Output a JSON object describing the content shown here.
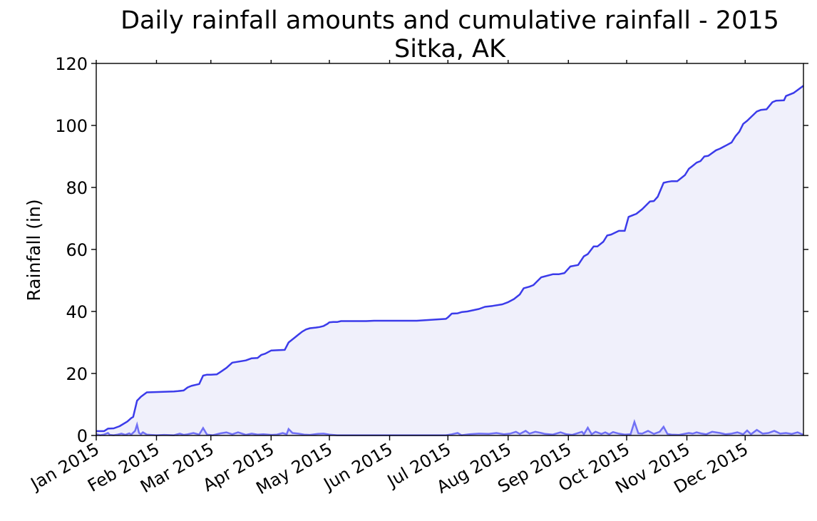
{
  "chart_data": {
    "type": "area",
    "title": "Daily rainfall amounts and cumulative rainfall - 2015",
    "subtitle": "Sitka, AK",
    "xlabel": "",
    "ylabel": "Rainfall (in)",
    "xlim": [
      "2015-01-01",
      "2015-12-31"
    ],
    "ylim": [
      0,
      120
    ],
    "x_ticks": [
      "2015-01-01",
      "2015-02-01",
      "2015-03-01",
      "2015-04-01",
      "2015-05-01",
      "2015-06-01",
      "2015-07-01",
      "2015-08-01",
      "2015-09-01",
      "2015-10-01",
      "2015-11-01",
      "2015-12-01"
    ],
    "x_tick_labels": [
      "Jan 2015",
      "Feb 2015",
      "Mar 2015",
      "Apr 2015",
      "May 2015",
      "Jun 2015",
      "Jul 2015",
      "Aug 2015",
      "Sep 2015",
      "Oct 2015",
      "Nov 2015",
      "Dec 2015"
    ],
    "y_ticks": [
      0,
      20,
      40,
      60,
      80,
      100,
      120
    ],
    "y_tick_labels": [
      "0",
      "20",
      "40",
      "60",
      "80",
      "100",
      "120"
    ],
    "grid": false,
    "colors": {
      "cumulative_line": "#3b3bea",
      "cumulative_fill": "#f0f0fb",
      "daily_line": "#7070f5"
    },
    "series": [
      {
        "kind": "cumulative",
        "x": [
          "2015-01-01",
          "2015-01-05",
          "2015-01-07",
          "2015-01-10",
          "2015-01-13",
          "2015-01-17",
          "2015-01-19",
          "2015-01-20",
          "2015-01-22",
          "2015-01-24",
          "2015-01-27",
          "2015-02-10",
          "2015-02-12",
          "2015-02-15",
          "2015-02-17",
          "2015-02-19",
          "2015-02-23",
          "2015-02-25",
          "2015-02-27",
          "2015-03-01",
          "2015-03-04",
          "2015-03-06",
          "2015-03-09",
          "2015-03-12",
          "2015-03-19",
          "2015-03-22",
          "2015-03-25",
          "2015-03-27",
          "2015-03-29",
          "2015-04-01",
          "2015-04-04",
          "2015-04-08",
          "2015-04-10",
          "2015-04-13",
          "2015-04-15",
          "2015-04-17",
          "2015-04-19",
          "2015-04-21",
          "2015-04-24",
          "2015-04-26",
          "2015-04-28",
          "2015-04-30",
          "2015-05-01",
          "2015-05-03",
          "2015-05-05",
          "2015-05-07",
          "2015-05-11",
          "2015-05-13",
          "2015-05-17",
          "2015-05-20",
          "2015-05-24",
          "2015-06-01",
          "2015-06-15",
          "2015-06-30",
          "2015-07-01",
          "2015-07-03",
          "2015-07-06",
          "2015-07-08",
          "2015-07-11",
          "2015-07-17",
          "2015-07-20",
          "2015-07-24",
          "2015-07-29",
          "2015-08-01",
          "2015-08-04",
          "2015-08-07",
          "2015-08-09",
          "2015-08-12",
          "2015-08-14",
          "2015-08-18",
          "2015-08-24",
          "2015-08-27",
          "2015-08-30",
          "2015-09-02",
          "2015-09-06",
          "2015-09-09",
          "2015-09-11",
          "2015-09-14",
          "2015-09-16",
          "2015-09-19",
          "2015-09-21",
          "2015-09-23",
          "2015-09-27",
          "2015-09-30",
          "2015-10-02",
          "2015-10-06",
          "2015-10-09",
          "2015-10-13",
          "2015-10-15",
          "2015-10-17",
          "2015-10-20",
          "2015-10-22",
          "2015-10-24",
          "2015-10-27",
          "2015-10-31",
          "2015-11-02",
          "2015-11-04",
          "2015-11-06",
          "2015-11-08",
          "2015-11-10",
          "2015-11-12",
          "2015-11-16",
          "2015-11-18",
          "2015-11-21",
          "2015-11-24",
          "2015-11-26",
          "2015-11-28",
          "2015-11-30",
          "2015-12-02",
          "2015-12-07",
          "2015-12-09",
          "2015-12-12",
          "2015-12-15",
          "2015-12-17",
          "2015-12-21",
          "2015-12-22",
          "2015-12-26",
          "2015-12-31"
        ],
        "values": [
          1.4,
          1.4,
          2.2,
          2.3,
          3.0,
          4.5,
          5.6,
          6.0,
          11.2,
          12.5,
          13.9,
          14.2,
          14.3,
          14.5,
          15.5,
          16.0,
          16.6,
          19.3,
          19.6,
          19.6,
          19.7,
          20.5,
          21.8,
          23.5,
          24.2,
          24.9,
          25.0,
          26.0,
          26.4,
          27.4,
          27.5,
          27.6,
          30.0,
          31.5,
          32.5,
          33.5,
          34.2,
          34.6,
          34.8,
          35.0,
          35.3,
          36.0,
          36.5,
          36.6,
          36.6,
          36.9,
          36.9,
          36.9,
          36.9,
          36.9,
          37.0,
          37.0,
          37.0,
          37.6,
          38.1,
          39.3,
          39.4,
          39.8,
          40.0,
          40.8,
          41.5,
          41.8,
          42.3,
          43.0,
          44.0,
          45.5,
          47.5,
          48.0,
          48.5,
          51.0,
          52.0,
          52.0,
          52.4,
          54.5,
          55.0,
          57.8,
          58.5,
          61.0,
          61.0,
          62.5,
          64.5,
          64.8,
          66.0,
          66.0,
          70.5,
          71.5,
          73.0,
          75.5,
          75.6,
          77.0,
          81.5,
          81.8,
          82.0,
          82.0,
          84.0,
          86.0,
          87.0,
          88.0,
          88.5,
          90.0,
          90.2,
          92.0,
          92.5,
          93.5,
          94.5,
          96.5,
          98.0,
          100.5,
          101.5,
          104.5,
          105.0,
          105.2,
          107.5,
          108.0,
          108.1,
          109.5,
          110.5,
          112.8
        ]
      },
      {
        "kind": "daily",
        "x": [
          "2015-01-01",
          "2015-01-03",
          "2015-01-05",
          "2015-01-07",
          "2015-01-08",
          "2015-01-10",
          "2015-01-12",
          "2015-01-14",
          "2015-01-16",
          "2015-01-18",
          "2015-01-19",
          "2015-01-21",
          "2015-01-22",
          "2015-01-23",
          "2015-01-24",
          "2015-01-25",
          "2015-01-27",
          "2015-01-29",
          "2015-02-01",
          "2015-02-05",
          "2015-02-10",
          "2015-02-13",
          "2015-02-15",
          "2015-02-17",
          "2015-02-20",
          "2015-02-23",
          "2015-02-25",
          "2015-02-27",
          "2015-03-02",
          "2015-03-06",
          "2015-03-09",
          "2015-03-12",
          "2015-03-15",
          "2015-03-19",
          "2015-03-22",
          "2015-03-25",
          "2015-03-28",
          "2015-04-01",
          "2015-04-04",
          "2015-04-07",
          "2015-04-09",
          "2015-04-10",
          "2015-04-12",
          "2015-04-15",
          "2015-04-18",
          "2015-04-21",
          "2015-04-25",
          "2015-04-28",
          "2015-05-01",
          "2015-05-05",
          "2015-05-10",
          "2015-06-01",
          "2015-06-30",
          "2015-07-03",
          "2015-07-06",
          "2015-07-08",
          "2015-07-12",
          "2015-07-17",
          "2015-07-22",
          "2015-07-26",
          "2015-07-30",
          "2015-08-02",
          "2015-08-05",
          "2015-08-07",
          "2015-08-10",
          "2015-08-12",
          "2015-08-15",
          "2015-08-18",
          "2015-08-20",
          "2015-08-24",
          "2015-08-28",
          "2015-08-31",
          "2015-09-03",
          "2015-09-05",
          "2015-09-08",
          "2015-09-09",
          "2015-09-11",
          "2015-09-13",
          "2015-09-15",
          "2015-09-18",
          "2015-09-20",
          "2015-09-22",
          "2015-09-24",
          "2015-09-27",
          "2015-09-30",
          "2015-10-03",
          "2015-10-05",
          "2015-10-07",
          "2015-10-09",
          "2015-10-12",
          "2015-10-15",
          "2015-10-18",
          "2015-10-20",
          "2015-10-22",
          "2015-10-24",
          "2015-10-28",
          "2015-11-02",
          "2015-11-04",
          "2015-11-06",
          "2015-11-08",
          "2015-11-11",
          "2015-11-14",
          "2015-11-18",
          "2015-11-21",
          "2015-11-24",
          "2015-11-27",
          "2015-11-30",
          "2015-12-02",
          "2015-12-04",
          "2015-12-07",
          "2015-12-10",
          "2015-12-13",
          "2015-12-16",
          "2015-12-19",
          "2015-12-22",
          "2015-12-25",
          "2015-12-28",
          "2015-12-31"
        ],
        "values": [
          0.4,
          0.1,
          0.3,
          0.8,
          0.2,
          0.1,
          0.3,
          0.6,
          0.2,
          0.7,
          0.3,
          1.5,
          3.5,
          0.8,
          0.4,
          1.0,
          0.3,
          0.2,
          0.1,
          0.2,
          0.1,
          0.6,
          0.2,
          0.4,
          0.8,
          0.3,
          2.4,
          0.3,
          0.1,
          0.7,
          1.0,
          0.4,
          1.0,
          0.2,
          0.6,
          0.3,
          0.4,
          0.2,
          0.3,
          0.8,
          0.4,
          2.1,
          0.8,
          0.6,
          0.3,
          0.2,
          0.5,
          0.6,
          0.3,
          0.1,
          0.1,
          0.1,
          0.1,
          0.4,
          0.8,
          0.1,
          0.4,
          0.6,
          0.5,
          0.8,
          0.4,
          0.6,
          1.2,
          0.5,
          1.5,
          0.6,
          1.2,
          0.8,
          0.5,
          0.3,
          1.0,
          0.4,
          0.2,
          0.6,
          1.2,
          0.4,
          2.5,
          0.4,
          1.2,
          0.5,
          1.0,
          0.4,
          1.1,
          0.6,
          0.3,
          0.4,
          4.4,
          0.7,
          0.6,
          1.5,
          0.5,
          1.2,
          2.8,
          0.5,
          0.3,
          0.2,
          0.8,
          0.6,
          1.0,
          0.7,
          0.4,
          1.2,
          0.8,
          0.4,
          0.6,
          1.0,
          0.4,
          1.6,
          0.4,
          1.8,
          0.6,
          0.8,
          1.5,
          0.6,
          0.8,
          0.5,
          1.0,
          0.2
        ]
      }
    ]
  }
}
